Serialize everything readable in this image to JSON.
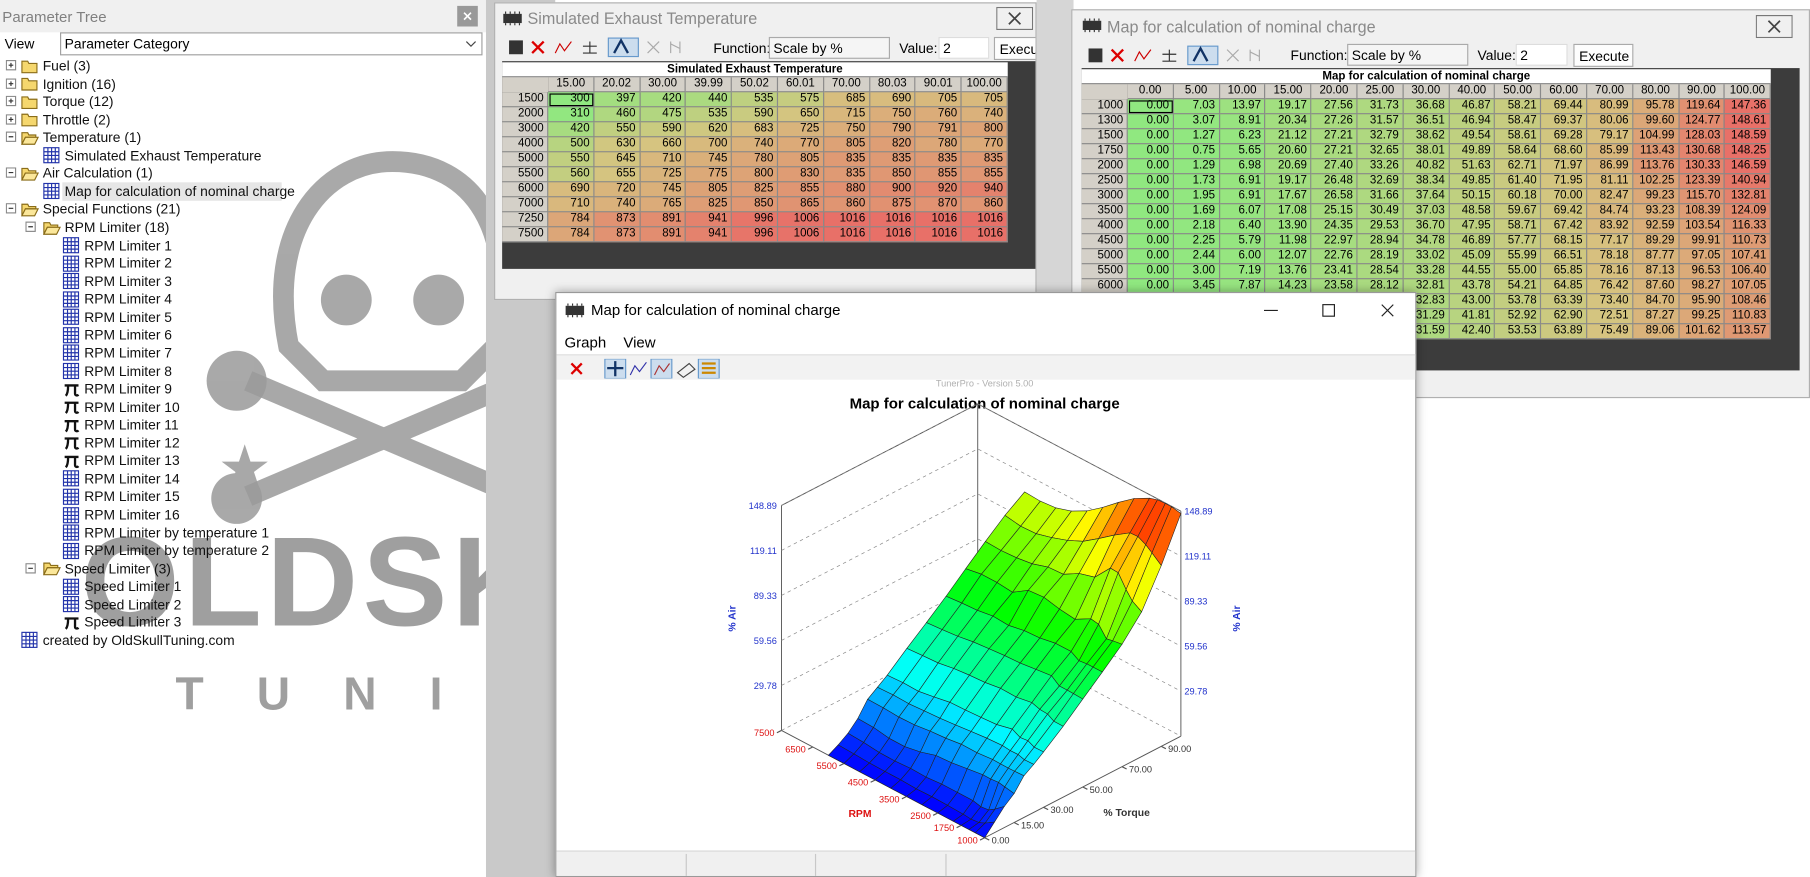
{
  "tree": {
    "title": "Parameter Tree",
    "view_label": "View",
    "view_value": "Parameter Category",
    "items": [
      "Fuel (3)",
      "Ignition (16)",
      "Torque (12)",
      "Throttle (2)",
      "Temperature (1)",
      "Simulated Exhaust Temperature",
      "Air Calculation (1)",
      "Map for calculation of nominal charge",
      "Special Functions (21)",
      "RPM Limiter (18)",
      "RPM Limiter 1",
      "RPM Limiter 2",
      "RPM Limiter 3",
      "RPM Limiter 4",
      "RPM Limiter 5",
      "RPM Limiter 6",
      "RPM Limiter 7",
      "RPM Limiter 8",
      "RPM Limiter 9",
      "RPM Limiter 10",
      "RPM Limiter 11",
      "RPM Limiter 12",
      "RPM Limiter 13",
      "RPM Limiter 14",
      "RPM Limiter 15",
      "RPM Limiter 16",
      "RPM Limiter by temperature 1",
      "RPM Limiter by temperature 2",
      "Speed Limiter (3)",
      "Speed Limiter 1",
      "Speed Limiter 2",
      "Speed Limiter 3",
      "created by OldSkullTuning.com"
    ]
  },
  "logo": {
    "name": "OLDSKULL",
    "tagline": "TUNING"
  },
  "exhaust_window": {
    "title": "Simulated Exhaust Temperature",
    "function_label": "Function:",
    "function_value": "Scale by %",
    "value_label": "Value:",
    "value": "2",
    "execute": "Execute",
    "table": {
      "caption": "Simulated Exhaust Temperature",
      "columns": [
        "15.00",
        "20.02",
        "30.00",
        "39.99",
        "50.02",
        "60.01",
        "70.00",
        "80.03",
        "90.01",
        "100.00"
      ],
      "rows": [
        {
          "rpm": 1500,
          "values": [
            300,
            397,
            420,
            440,
            535,
            575,
            685,
            690,
            705,
            705
          ]
        },
        {
          "rpm": 2000,
          "values": [
            310,
            460,
            475,
            535,
            590,
            650,
            715,
            750,
            760,
            740
          ]
        },
        {
          "rpm": 3000,
          "values": [
            420,
            550,
            590,
            620,
            683,
            725,
            750,
            790,
            791,
            800
          ]
        },
        {
          "rpm": 4000,
          "values": [
            500,
            630,
            660,
            700,
            740,
            770,
            805,
            820,
            780,
            770
          ]
        },
        {
          "rpm": 5000,
          "values": [
            550,
            645,
            710,
            745,
            780,
            805,
            835,
            835,
            835,
            835
          ]
        },
        {
          "rpm": 5500,
          "values": [
            560,
            655,
            725,
            775,
            800,
            830,
            835,
            850,
            855,
            855
          ]
        },
        {
          "rpm": 6000,
          "values": [
            690,
            720,
            745,
            805,
            825,
            855,
            880,
            900,
            920,
            940
          ]
        },
        {
          "rpm": 7000,
          "values": [
            710,
            740,
            765,
            825,
            850,
            865,
            860,
            875,
            870,
            860
          ]
        },
        {
          "rpm": 7250,
          "values": [
            784,
            873,
            891,
            941,
            996,
            1006,
            1016,
            1016,
            1016,
            1016
          ]
        },
        {
          "rpm": 7500,
          "values": [
            784,
            873,
            891,
            941,
            996,
            1006,
            1016,
            1016,
            1016,
            1016
          ]
        }
      ]
    }
  },
  "nominal_window": {
    "title": "Map for calculation of nominal charge",
    "function_label": "Function:",
    "function_value": "Scale by %",
    "value_label": "Value:",
    "value": "2",
    "execute": "Execute",
    "table": {
      "caption": "Map for calculation of nominal charge",
      "columns": [
        "0.00",
        "5.00",
        "10.00",
        "15.00",
        "20.00",
        "25.00",
        "30.00",
        "40.00",
        "50.00",
        "60.00",
        "70.00",
        "80.00",
        "90.00",
        "100.00"
      ],
      "rows": [
        {
          "rpm": 1000,
          "values": [
            "0.00",
            "7.03",
            "13.97",
            "19.17",
            "27.56",
            "31.73",
            "36.68",
            "46.87",
            "58.21",
            "69.44",
            "80.99",
            "95.78",
            "119.64",
            "147.36"
          ]
        },
        {
          "rpm": 1300,
          "values": [
            "0.00",
            "3.07",
            "8.91",
            "20.34",
            "27.26",
            "31.57",
            "36.51",
            "46.94",
            "58.47",
            "69.37",
            "80.06",
            "99.60",
            "124.77",
            "148.61"
          ]
        },
        {
          "rpm": 1500,
          "values": [
            "0.00",
            "1.27",
            "6.23",
            "21.12",
            "27.21",
            "32.79",
            "38.62",
            "49.54",
            "58.61",
            "69.28",
            "79.17",
            "104.99",
            "128.03",
            "148.59"
          ]
        },
        {
          "rpm": 1750,
          "values": [
            "0.00",
            "0.75",
            "5.65",
            "20.60",
            "27.21",
            "32.65",
            "38.01",
            "49.89",
            "58.64",
            "68.60",
            "85.99",
            "113.43",
            "130.68",
            "148.25"
          ]
        },
        {
          "rpm": 2000,
          "values": [
            "0.00",
            "1.29",
            "6.98",
            "20.69",
            "27.40",
            "33.26",
            "40.82",
            "51.63",
            "62.71",
            "71.97",
            "86.99",
            "113.76",
            "130.33",
            "146.59"
          ]
        },
        {
          "rpm": 2500,
          "values": [
            "0.00",
            "1.73",
            "6.91",
            "19.17",
            "26.48",
            "32.69",
            "38.34",
            "49.85",
            "61.40",
            "71.95",
            "81.11",
            "102.25",
            "123.39",
            "140.94"
          ]
        },
        {
          "rpm": 3000,
          "values": [
            "0.00",
            "1.95",
            "6.91",
            "17.67",
            "26.58",
            "31.66",
            "37.64",
            "50.15",
            "60.18",
            "70.00",
            "82.47",
            "99.23",
            "115.70",
            "132.81"
          ]
        },
        {
          "rpm": 3500,
          "values": [
            "0.00",
            "1.69",
            "6.07",
            "17.08",
            "25.15",
            "30.49",
            "37.03",
            "48.58",
            "59.67",
            "69.42",
            "84.74",
            "93.23",
            "108.39",
            "124.09"
          ]
        },
        {
          "rpm": 4000,
          "values": [
            "0.00",
            "2.18",
            "6.40",
            "13.90",
            "24.35",
            "29.53",
            "36.70",
            "47.95",
            "58.71",
            "67.42",
            "83.92",
            "92.59",
            "103.54",
            "116.33"
          ]
        },
        {
          "rpm": 4500,
          "values": [
            "0.00",
            "2.25",
            "5.79",
            "11.98",
            "22.97",
            "28.94",
            "34.78",
            "46.89",
            "57.77",
            "68.15",
            "77.17",
            "89.29",
            "99.91",
            "110.73"
          ]
        },
        {
          "rpm": 5000,
          "values": [
            "0.00",
            "2.44",
            "6.00",
            "12.07",
            "22.76",
            "28.19",
            "33.02",
            "45.09",
            "55.99",
            "66.51",
            "78.18",
            "87.77",
            "97.05",
            "107.41"
          ]
        },
        {
          "rpm": 5500,
          "values": [
            "0.00",
            "3.00",
            "7.19",
            "13.76",
            "23.41",
            "28.54",
            "33.28",
            "44.55",
            "55.00",
            "65.85",
            "78.16",
            "87.13",
            "96.53",
            "106.40"
          ]
        },
        {
          "rpm": 6000,
          "values": [
            "0.00",
            "3.45",
            "7.87",
            "14.23",
            "23.58",
            "28.12",
            "32.81",
            "43.78",
            "54.21",
            "64.85",
            "76.42",
            "87.60",
            "98.27",
            "107.05"
          ]
        },
        {
          "rpm": null,
          "values": [
            null,
            null,
            null,
            null,
            null,
            null,
            "32.83",
            "43.00",
            "53.78",
            "63.39",
            "73.40",
            "84.70",
            "95.90",
            "108.46"
          ]
        },
        {
          "rpm": null,
          "values": [
            null,
            null,
            null,
            null,
            null,
            null,
            "31.29",
            "41.81",
            "52.92",
            "62.90",
            "72.51",
            "87.27",
            "99.25",
            "110.83"
          ]
        },
        {
          "rpm": null,
          "values": [
            null,
            null,
            null,
            null,
            null,
            null,
            "31.59",
            "42.40",
            "53.53",
            "63.89",
            "75.49",
            "89.06",
            "101.62",
            "113.57"
          ]
        }
      ]
    }
  },
  "graph_window": {
    "title": "Map for calculation of nominal charge",
    "menu": [
      "Graph",
      "View"
    ],
    "chart": {
      "type": "surface",
      "watermark": "TunerPro - Version 5.00",
      "title": "Map for calculation of nominal charge",
      "z_label": "% Air",
      "rpm_label": "RPM",
      "torque_label": "% Torque",
      "zlim": [
        0,
        148.89
      ],
      "zticks": [
        29.78,
        59.56,
        89.33,
        119.11,
        148.89
      ],
      "rpm_lim": [
        1000,
        7500
      ],
      "rpm_ticks": [
        1000,
        1750,
        2500,
        3500,
        4500,
        5500,
        6500,
        7500
      ],
      "torque_lim": [
        0,
        100
      ],
      "torque_ticks": [
        {
          "value": 0,
          "label": "0.00"
        },
        {
          "value": 15,
          "label": "15.00"
        },
        {
          "value": 30,
          "label": "30.00"
        },
        {
          "value": 50,
          "label": "50.00"
        },
        {
          "value": 70,
          "label": "70.00"
        },
        {
          "value": 90,
          "label": "90.00"
        }
      ]
    }
  }
}
